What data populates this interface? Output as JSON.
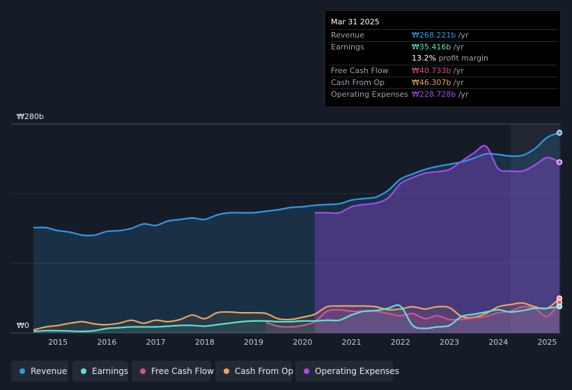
{
  "chart_data": {
    "type": "area",
    "title": "",
    "xlabel": "",
    "ylabel": "",
    "currency": "₩",
    "y_axis_labels": [
      "₩280b",
      "₩0"
    ],
    "ylim": [
      0,
      280
    ],
    "xlim": [
      2014.5,
      2025.25
    ],
    "x_ticks": [
      2015,
      2016,
      2017,
      2018,
      2019,
      2020,
      2021,
      2022,
      2023,
      2024,
      2025
    ],
    "x_tick_labels": [
      "2015",
      "2016",
      "2017",
      "2018",
      "2019",
      "2020",
      "2021",
      "2022",
      "2023",
      "2024",
      "2025"
    ],
    "highlight_start": 2024.25,
    "colors": {
      "revenue": "#2f9ae8",
      "earnings": "#5fe3d3",
      "free_cash_flow": "#d4558d",
      "cash_from_op": "#eaa65b",
      "operating_expenses": "#a54cf0"
    },
    "series": [
      {
        "key": "revenue",
        "name": "Revenue",
        "color": "#2f9ae8",
        "points": [
          [
            2014.5,
            141
          ],
          [
            2014.75,
            141
          ],
          [
            2015,
            137
          ],
          [
            2015.25,
            135
          ],
          [
            2015.5,
            131
          ],
          [
            2015.75,
            131
          ],
          [
            2016,
            136
          ],
          [
            2016.25,
            137
          ],
          [
            2016.5,
            140
          ],
          [
            2016.75,
            146
          ],
          [
            2017,
            144
          ],
          [
            2017.25,
            150
          ],
          [
            2017.5,
            152
          ],
          [
            2017.75,
            154
          ],
          [
            2018,
            152
          ],
          [
            2018.25,
            158
          ],
          [
            2018.5,
            161
          ],
          [
            2018.75,
            161
          ],
          [
            2019,
            161
          ],
          [
            2019.25,
            163
          ],
          [
            2019.5,
            165
          ],
          [
            2019.75,
            168
          ],
          [
            2020,
            169
          ],
          [
            2020.25,
            171
          ],
          [
            2020.5,
            172
          ],
          [
            2020.75,
            173
          ],
          [
            2021,
            178
          ],
          [
            2021.25,
            180
          ],
          [
            2021.5,
            182
          ],
          [
            2021.75,
            191
          ],
          [
            2022,
            206
          ],
          [
            2022.25,
            213
          ],
          [
            2022.5,
            219
          ],
          [
            2022.75,
            223
          ],
          [
            2023,
            226
          ],
          [
            2023.25,
            229
          ],
          [
            2023.5,
            234
          ],
          [
            2023.75,
            240
          ],
          [
            2024,
            239
          ],
          [
            2024.25,
            237
          ],
          [
            2024.5,
            238
          ],
          [
            2024.75,
            247
          ],
          [
            2025,
            262
          ],
          [
            2025.25,
            268.221
          ]
        ]
      },
      {
        "key": "earnings",
        "name": "Earnings",
        "color": "#5fe3d3",
        "points": [
          [
            2014.5,
            2
          ],
          [
            2014.75,
            3
          ],
          [
            2015,
            3
          ],
          [
            2015.25,
            2.5
          ],
          [
            2015.5,
            2
          ],
          [
            2015.75,
            3
          ],
          [
            2016,
            6
          ],
          [
            2016.25,
            7
          ],
          [
            2016.5,
            8
          ],
          [
            2016.75,
            8
          ],
          [
            2017,
            8
          ],
          [
            2017.25,
            9
          ],
          [
            2017.5,
            10
          ],
          [
            2017.75,
            10
          ],
          [
            2018,
            9
          ],
          [
            2018.25,
            11
          ],
          [
            2018.5,
            13
          ],
          [
            2018.75,
            15
          ],
          [
            2019,
            16
          ],
          [
            2019.25,
            16
          ],
          [
            2019.5,
            15
          ],
          [
            2019.75,
            15
          ],
          [
            2020,
            16
          ],
          [
            2020.25,
            16
          ],
          [
            2020.5,
            17
          ],
          [
            2020.75,
            17
          ],
          [
            2021,
            24
          ],
          [
            2021.25,
            29
          ],
          [
            2021.5,
            30
          ],
          [
            2021.75,
            33
          ],
          [
            2022,
            36
          ],
          [
            2022.25,
            10
          ],
          [
            2022.5,
            6
          ],
          [
            2022.75,
            8
          ],
          [
            2023,
            10
          ],
          [
            2023.25,
            22
          ],
          [
            2023.5,
            25
          ],
          [
            2023.75,
            28
          ],
          [
            2024,
            31
          ],
          [
            2024.25,
            28
          ],
          [
            2024.5,
            30
          ],
          [
            2024.75,
            33
          ],
          [
            2025,
            33
          ],
          [
            2025.25,
            35.416
          ]
        ]
      },
      {
        "key": "free_cash_flow",
        "name": "Free Cash Flow",
        "color": "#d4558d",
        "start": 2019.25,
        "points": [
          [
            2019.25,
            14
          ],
          [
            2019.5,
            9
          ],
          [
            2019.75,
            8
          ],
          [
            2020,
            10
          ],
          [
            2020.25,
            15
          ],
          [
            2020.5,
            29
          ],
          [
            2020.75,
            31
          ],
          [
            2021,
            29
          ],
          [
            2021.25,
            29
          ],
          [
            2021.5,
            29
          ],
          [
            2021.75,
            26
          ],
          [
            2022,
            23
          ],
          [
            2022.25,
            26
          ],
          [
            2022.5,
            19
          ],
          [
            2022.75,
            23
          ],
          [
            2023,
            18
          ],
          [
            2023.25,
            18
          ],
          [
            2023.5,
            20
          ],
          [
            2023.75,
            22
          ],
          [
            2024,
            27
          ],
          [
            2024.25,
            29
          ],
          [
            2024.5,
            35
          ],
          [
            2024.75,
            33
          ],
          [
            2025,
            22
          ],
          [
            2025.25,
            40.733
          ]
        ]
      },
      {
        "key": "cash_from_op",
        "name": "Cash From Op",
        "color": "#eaa65b",
        "points": [
          [
            2014.5,
            4
          ],
          [
            2014.75,
            8
          ],
          [
            2015,
            10
          ],
          [
            2015.25,
            13
          ],
          [
            2015.5,
            15
          ],
          [
            2015.75,
            12
          ],
          [
            2016,
            11
          ],
          [
            2016.25,
            13
          ],
          [
            2016.5,
            17
          ],
          [
            2016.75,
            13
          ],
          [
            2017,
            17
          ],
          [
            2017.25,
            15
          ],
          [
            2017.5,
            18
          ],
          [
            2017.75,
            24
          ],
          [
            2018,
            19
          ],
          [
            2018.25,
            27
          ],
          [
            2018.5,
            28
          ],
          [
            2018.75,
            27
          ],
          [
            2019,
            27
          ],
          [
            2019.25,
            26
          ],
          [
            2019.5,
            19
          ],
          [
            2019.75,
            18
          ],
          [
            2020,
            21
          ],
          [
            2020.25,
            25
          ],
          [
            2020.5,
            35
          ],
          [
            2020.75,
            36
          ],
          [
            2021,
            36
          ],
          [
            2021.25,
            36
          ],
          [
            2021.5,
            35
          ],
          [
            2021.75,
            31
          ],
          [
            2022,
            32
          ],
          [
            2022.25,
            35
          ],
          [
            2022.5,
            32
          ],
          [
            2022.75,
            35
          ],
          [
            2023,
            34
          ],
          [
            2023.25,
            22
          ],
          [
            2023.5,
            21
          ],
          [
            2023.75,
            26
          ],
          [
            2024,
            35
          ],
          [
            2024.25,
            38
          ],
          [
            2024.5,
            40
          ],
          [
            2024.75,
            35
          ],
          [
            2025,
            33
          ],
          [
            2025.25,
            46.307
          ]
        ]
      },
      {
        "key": "operating_expenses",
        "name": "Operating Expenses",
        "color": "#a54cf0",
        "start": 2020.25,
        "points": [
          [
            2020.25,
            161
          ],
          [
            2020.5,
            161
          ],
          [
            2020.75,
            161
          ],
          [
            2021,
            169
          ],
          [
            2021.25,
            172
          ],
          [
            2021.5,
            174
          ],
          [
            2021.75,
            181
          ],
          [
            2022,
            200
          ],
          [
            2022.25,
            208
          ],
          [
            2022.5,
            214
          ],
          [
            2022.75,
            216
          ],
          [
            2023,
            219
          ],
          [
            2023.25,
            230
          ],
          [
            2023.5,
            241
          ],
          [
            2023.75,
            250
          ],
          [
            2024,
            220
          ],
          [
            2024.25,
            217
          ],
          [
            2024.5,
            217
          ],
          [
            2024.75,
            225
          ],
          [
            2025,
            235
          ],
          [
            2025.25,
            228.728
          ]
        ]
      }
    ]
  },
  "tooltip": {
    "date": "Mar 31 2025",
    "rows": [
      {
        "label": "Revenue",
        "value": "₩268.221b",
        "unit": " /yr",
        "color": "#2f9ae8"
      },
      {
        "label": "Earnings",
        "value": "₩35.416b",
        "unit": " /yr",
        "color": "#5fe3d3"
      },
      {
        "label": "",
        "value": "13.2%",
        "unit": " profit margin",
        "color": "#ffffff"
      },
      {
        "label": "Free Cash Flow",
        "value": "₩40.733b",
        "unit": " /yr",
        "color": "#d4558d"
      },
      {
        "label": "Cash From Op",
        "value": "₩46.307b",
        "unit": " /yr",
        "color": "#eaa65b"
      },
      {
        "label": "Operating Expenses",
        "value": "₩228.728b",
        "unit": " /yr",
        "color": "#a54cf0"
      }
    ]
  },
  "legend": [
    {
      "label": "Revenue",
      "color": "#2f9ae8"
    },
    {
      "label": "Earnings",
      "color": "#5fe3d3"
    },
    {
      "label": "Free Cash Flow",
      "color": "#d4558d"
    },
    {
      "label": "Cash From Op",
      "color": "#eaa65b"
    },
    {
      "label": "Operating Expenses",
      "color": "#a54cf0"
    }
  ]
}
